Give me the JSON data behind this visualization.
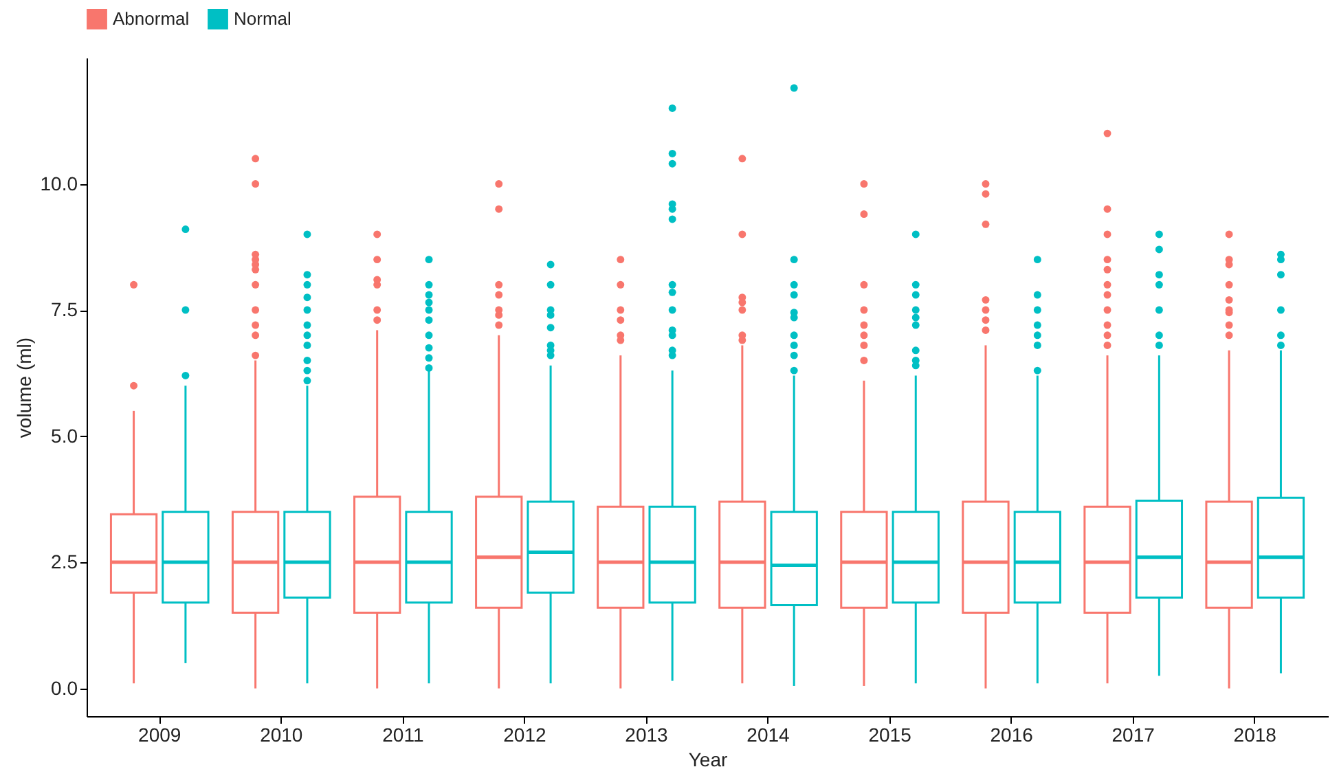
{
  "chart_data": {
    "type": "box",
    "xlabel": "Year",
    "ylabel": "volume (ml)",
    "categories": [
      "2009",
      "2010",
      "2011",
      "2012",
      "2013",
      "2014",
      "2015",
      "2016",
      "2017",
      "2018"
    ],
    "ylim": [
      -0.55,
      12.5
    ],
    "yticks": [
      {
        "value": 0,
        "label": "0.0"
      },
      {
        "value": 2.5,
        "label": "2.5"
      },
      {
        "value": 5,
        "label": "5.0"
      },
      {
        "value": 7.5,
        "label": "7.5"
      },
      {
        "value": 10,
        "label": "10.0"
      }
    ],
    "grid": false,
    "legend": "top",
    "series": [
      {
        "name": "Abnormal",
        "color": "#f8766d",
        "boxes": [
          {
            "low": 0.1,
            "q1": 1.9,
            "median": 2.5,
            "q3": 3.45,
            "high": 5.5,
            "outliers": [
              6.0,
              8.0
            ]
          },
          {
            "low": 0.0,
            "q1": 1.5,
            "median": 2.5,
            "q3": 3.5,
            "high": 6.5,
            "outliers": [
              6.6,
              7.0,
              7.2,
              7.5,
              8.0,
              8.3,
              8.4,
              8.5,
              8.6,
              10.0,
              10.5
            ]
          },
          {
            "low": 0.0,
            "q1": 1.5,
            "median": 2.5,
            "q3": 3.8,
            "high": 7.1,
            "outliers": [
              7.3,
              7.5,
              8.0,
              8.1,
              8.5,
              9.0
            ]
          },
          {
            "low": 0.0,
            "q1": 1.6,
            "median": 2.6,
            "q3": 3.8,
            "high": 7.0,
            "outliers": [
              7.2,
              7.4,
              7.5,
              7.8,
              8.0,
              9.5,
              10.0
            ]
          },
          {
            "low": 0.0,
            "q1": 1.6,
            "median": 2.5,
            "q3": 3.6,
            "high": 6.6,
            "outliers": [
              6.9,
              7.0,
              7.3,
              7.5,
              8.0,
              8.5
            ]
          },
          {
            "low": 0.1,
            "q1": 1.6,
            "median": 2.5,
            "q3": 3.7,
            "high": 6.8,
            "outliers": [
              6.9,
              7.0,
              7.5,
              7.65,
              7.75,
              9.0,
              10.5
            ]
          },
          {
            "low": 0.05,
            "q1": 1.6,
            "median": 2.5,
            "q3": 3.5,
            "high": 6.1,
            "outliers": [
              6.5,
              6.8,
              7.0,
              7.2,
              7.5,
              8.0,
              9.4,
              10.0
            ]
          },
          {
            "low": 0.0,
            "q1": 1.5,
            "median": 2.5,
            "q3": 3.7,
            "high": 6.8,
            "outliers": [
              7.1,
              7.3,
              7.5,
              7.7,
              9.2,
              9.8,
              10.0
            ]
          },
          {
            "low": 0.1,
            "q1": 1.5,
            "median": 2.5,
            "q3": 3.6,
            "high": 6.6,
            "outliers": [
              6.8,
              7.0,
              7.2,
              7.5,
              7.8,
              8.0,
              8.3,
              8.5,
              9.0,
              9.5,
              11.0
            ]
          },
          {
            "low": 0.0,
            "q1": 1.6,
            "median": 2.5,
            "q3": 3.7,
            "high": 6.7,
            "outliers": [
              7.0,
              7.2,
              7.45,
              7.5,
              7.7,
              8.0,
              8.4,
              8.5,
              9.0
            ]
          }
        ]
      },
      {
        "name": "Normal",
        "color": "#00bfc4",
        "boxes": [
          {
            "low": 0.5,
            "q1": 1.7,
            "median": 2.5,
            "q3": 3.5,
            "high": 6.0,
            "outliers": [
              6.2,
              7.5,
              9.1
            ]
          },
          {
            "low": 0.1,
            "q1": 1.8,
            "median": 2.5,
            "q3": 3.5,
            "high": 6.0,
            "outliers": [
              6.1,
              6.3,
              6.5,
              6.8,
              7.0,
              7.2,
              7.5,
              7.75,
              8.0,
              8.2,
              9.0
            ]
          },
          {
            "low": 0.1,
            "q1": 1.7,
            "median": 2.5,
            "q3": 3.5,
            "high": 6.3,
            "outliers": [
              6.35,
              6.55,
              6.75,
              7.0,
              7.3,
              7.5,
              7.65,
              7.8,
              8.0,
              8.5
            ]
          },
          {
            "low": 0.1,
            "q1": 1.9,
            "median": 2.7,
            "q3": 3.7,
            "high": 6.4,
            "outliers": [
              6.6,
              6.7,
              6.8,
              7.15,
              7.4,
              7.5,
              8.0,
              8.4
            ]
          },
          {
            "low": 0.15,
            "q1": 1.7,
            "median": 2.5,
            "q3": 3.6,
            "high": 6.3,
            "outliers": [
              6.6,
              6.7,
              7.0,
              7.1,
              7.5,
              7.85,
              8.0,
              9.3,
              9.5,
              9.6,
              10.4,
              10.6,
              11.5
            ]
          },
          {
            "low": 0.05,
            "q1": 1.65,
            "median": 2.44,
            "q3": 3.5,
            "high": 6.2,
            "outliers": [
              6.3,
              6.6,
              6.8,
              7.0,
              7.35,
              7.45,
              7.8,
              8.0,
              8.5,
              11.9
            ]
          },
          {
            "low": 0.1,
            "q1": 1.7,
            "median": 2.5,
            "q3": 3.5,
            "high": 6.2,
            "outliers": [
              6.4,
              6.5,
              6.7,
              7.2,
              7.35,
              7.5,
              7.8,
              8.0,
              9.0
            ]
          },
          {
            "low": 0.1,
            "q1": 1.7,
            "median": 2.5,
            "q3": 3.5,
            "high": 6.2,
            "outliers": [
              6.3,
              6.8,
              7.0,
              7.2,
              7.5,
              7.8,
              8.5
            ]
          },
          {
            "low": 0.25,
            "q1": 1.8,
            "median": 2.6,
            "q3": 3.72,
            "high": 6.6,
            "outliers": [
              6.8,
              7.0,
              7.5,
              8.0,
              8.2,
              8.7,
              9.0
            ]
          },
          {
            "low": 0.3,
            "q1": 1.8,
            "median": 2.6,
            "q3": 3.78,
            "high": 6.7,
            "outliers": [
              6.8,
              7.0,
              7.5,
              8.2,
              8.5,
              8.6
            ]
          }
        ]
      }
    ]
  }
}
